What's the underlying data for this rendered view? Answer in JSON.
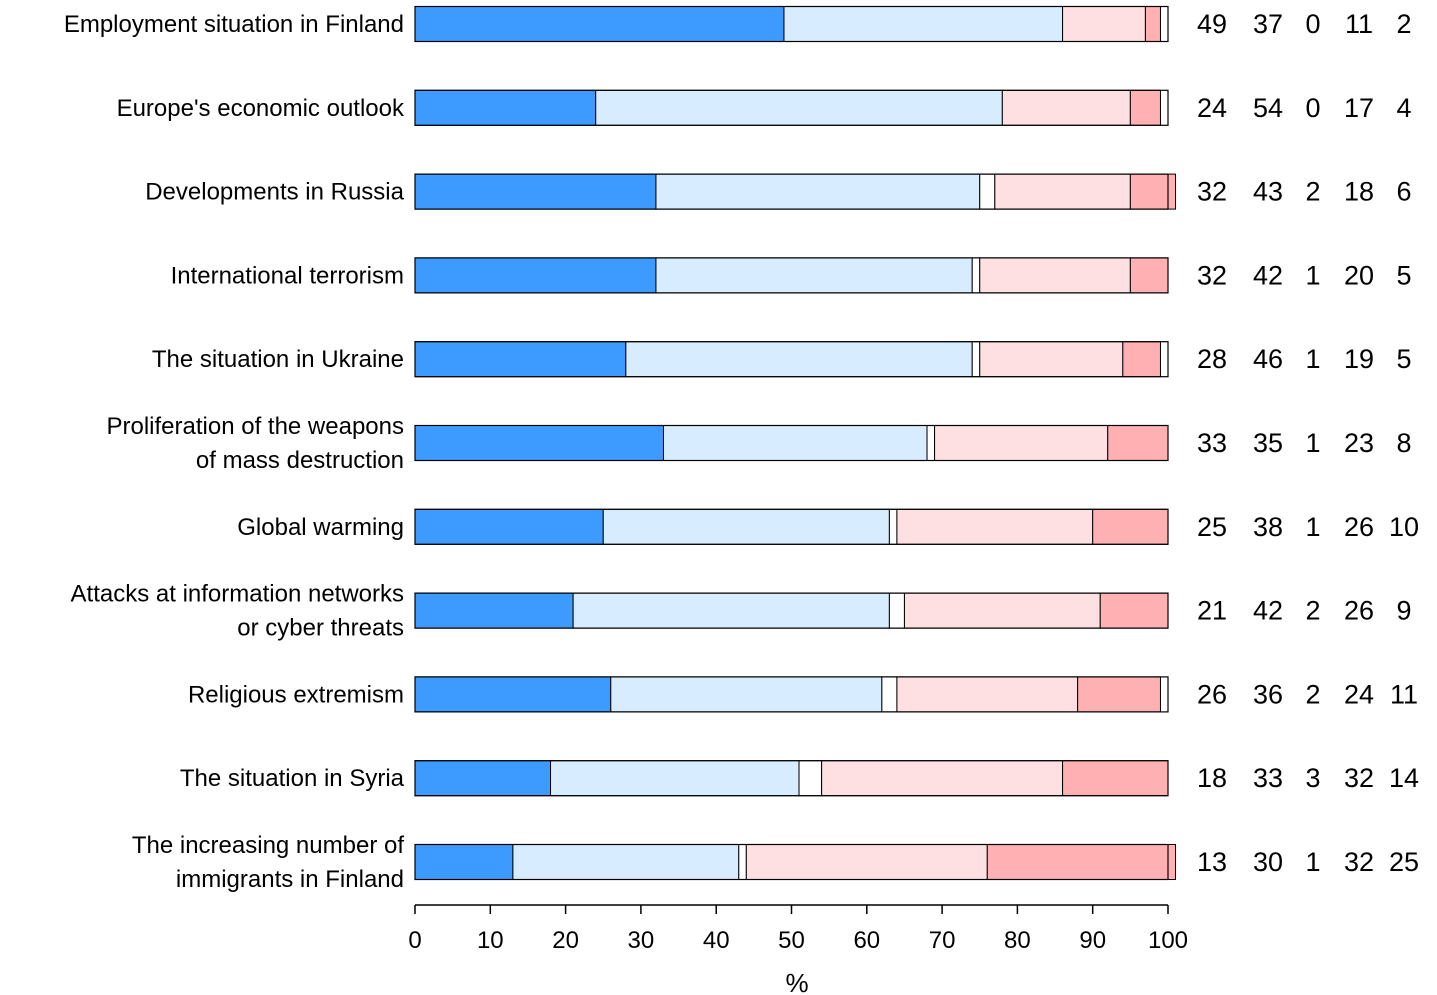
{
  "chart_data": {
    "type": "bar",
    "orientation": "horizontal",
    "stacked": true,
    "categories": [
      [
        "Employment situation in Finland"
      ],
      [
        "Europe's economic outlook"
      ],
      [
        "Developments in Russia"
      ],
      [
        "International terrorism"
      ],
      [
        "The situation in Ukraine"
      ],
      [
        "Proliferation of the weapons",
        "of mass destruction"
      ],
      [
        "Global warming"
      ],
      [
        "Attacks at information networks",
        "or cyber threats"
      ],
      [
        "Religious extremism"
      ],
      [
        "The situation in Syria"
      ],
      [
        "The increasing number of",
        "immigrants in Finland"
      ]
    ],
    "series": [
      {
        "color": "#3d9bff",
        "values": [
          49,
          24,
          32,
          32,
          28,
          33,
          25,
          21,
          26,
          18,
          13
        ]
      },
      {
        "color": "#d8ecff",
        "values": [
          37,
          54,
          43,
          42,
          46,
          35,
          38,
          42,
          36,
          33,
          30
        ]
      },
      {
        "color": "#ffffff",
        "values": [
          0,
          0,
          2,
          1,
          1,
          1,
          1,
          2,
          2,
          3,
          1
        ]
      },
      {
        "color": "#ffe0e2",
        "values": [
          11,
          17,
          18,
          20,
          19,
          23,
          26,
          26,
          24,
          32,
          32
        ]
      },
      {
        "color": "#ffb0b2",
        "values": [
          2,
          4,
          6,
          5,
          5,
          8,
          10,
          9,
          11,
          14,
          25
        ]
      }
    ],
    "xlim": [
      0,
      100
    ],
    "xticks": [
      "0",
      "10",
      "20",
      "30",
      "40",
      "50",
      "60",
      "70",
      "80",
      "90",
      "100"
    ],
    "xlabel": "%",
    "grid": false,
    "legend": "none",
    "value_labels": "right"
  }
}
